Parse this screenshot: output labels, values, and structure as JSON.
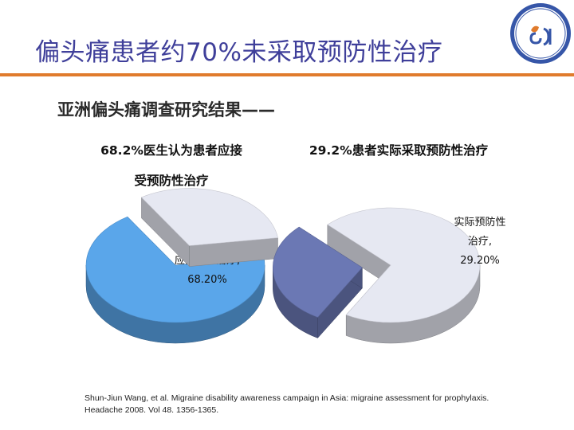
{
  "title": "偏头痛患者约70%未采取预防性治疗",
  "subtitle": "亚洲偏头痛调查研究结果——",
  "chart_data": [
    {
      "type": "pie",
      "title_lines": [
        "68.2%医生认为患者应接",
        "受预防性治疗"
      ],
      "slices": [
        {
          "label_lines": [
            "应预防性治疗,",
            "68.20%"
          ],
          "value": 68.2,
          "color": "#5aa6ea",
          "exploded": false
        },
        {
          "value": 31.8,
          "color": "#e6e8f2",
          "exploded": true
        }
      ]
    },
    {
      "type": "pie",
      "title_lines": [
        "29.2%患者实际采取预防性治疗"
      ],
      "slices": [
        {
          "value": 70.8,
          "color": "#e6e8f2",
          "exploded": false
        },
        {
          "label_lines": [
            "实际预防性",
            "治疗,",
            "29.20%"
          ],
          "value": 29.2,
          "color": "#6b78b4",
          "exploded": true
        }
      ]
    }
  ],
  "citation": "Shun-Jiun Wang, et al. Migraine disability awareness campaign in Asia: migraine assessment for prophylaxis. Headache 2008. Vol 48. 1356-1365."
}
